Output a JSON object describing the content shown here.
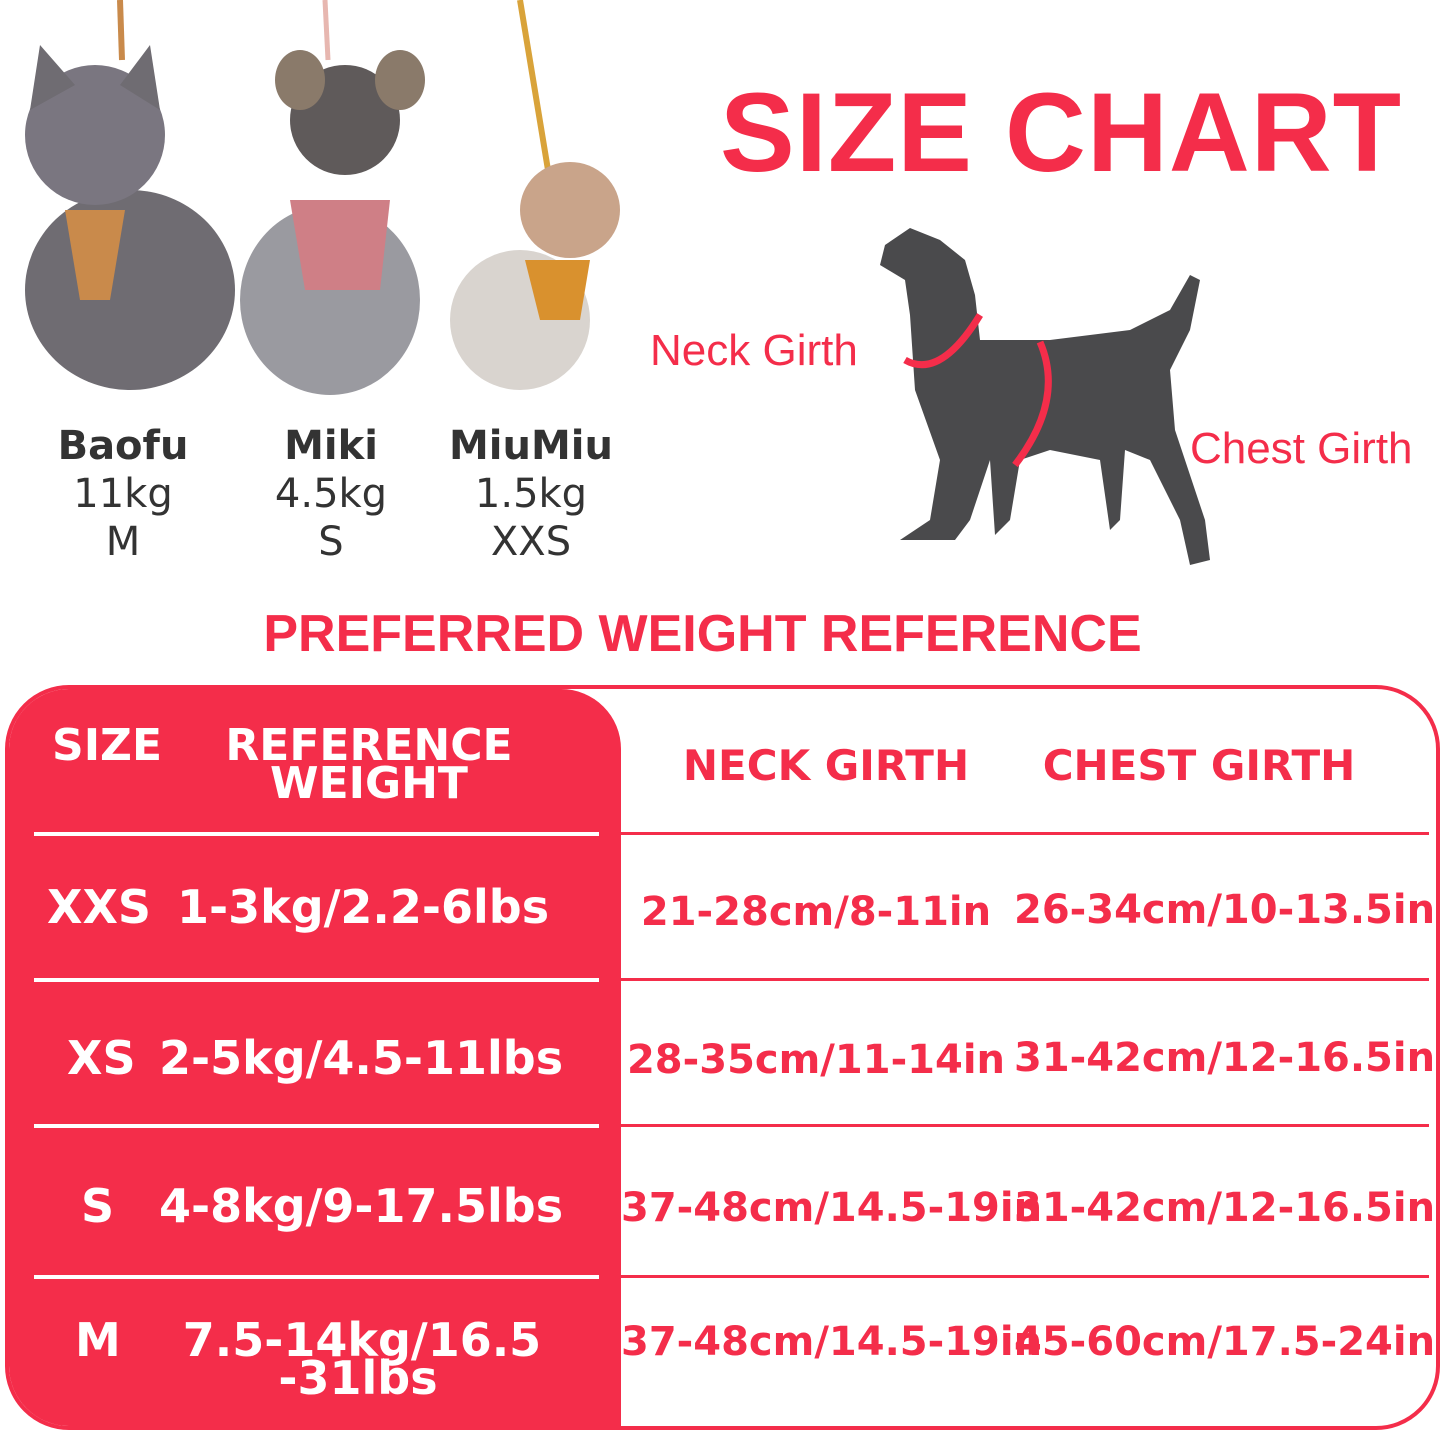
{
  "title": "SIZE CHART",
  "dogs": [
    {
      "name": "Baofu",
      "weight": "11kg",
      "size": "M"
    },
    {
      "name": "Miki",
      "weight": "4.5kg",
      "size": "S"
    },
    {
      "name": "MiuMiu",
      "weight": "1.5kg",
      "size": "XXS"
    }
  ],
  "diagram": {
    "neck_label": "Neck Girth",
    "chest_label": "Chest Girth"
  },
  "subtitle": "PREFERRED WEIGHT REFERENCE",
  "accent": "#f42d4a",
  "table": {
    "headers": {
      "size": "SIZE",
      "weight_line1": "REFERENCE",
      "weight_line2": "WEIGHT",
      "neck": "NECK GIRTH",
      "chest": "CHEST GIRTH"
    },
    "rows": [
      {
        "size": "XXS",
        "weight": "1-3kg/2.2-6lbs",
        "neck": "21-28cm/8-11in",
        "chest": "26-34cm/10-13.5in"
      },
      {
        "size": "XS",
        "weight": "2-5kg/4.5-11lbs",
        "neck": "28-35cm/11-14in",
        "chest": "31-42cm/12-16.5in"
      },
      {
        "size": "S",
        "weight": "4-8kg/9-17.5lbs",
        "neck": "37-48cm/14.5-19in",
        "chest": "31-42cm/12-16.5in"
      },
      {
        "size": "M",
        "weight_line1": "7.5-14kg/16.5",
        "weight_line2": "-31lbs",
        "neck": "37-48cm/14.5-19in",
        "chest": "45-60cm/17.5-24in"
      }
    ]
  }
}
